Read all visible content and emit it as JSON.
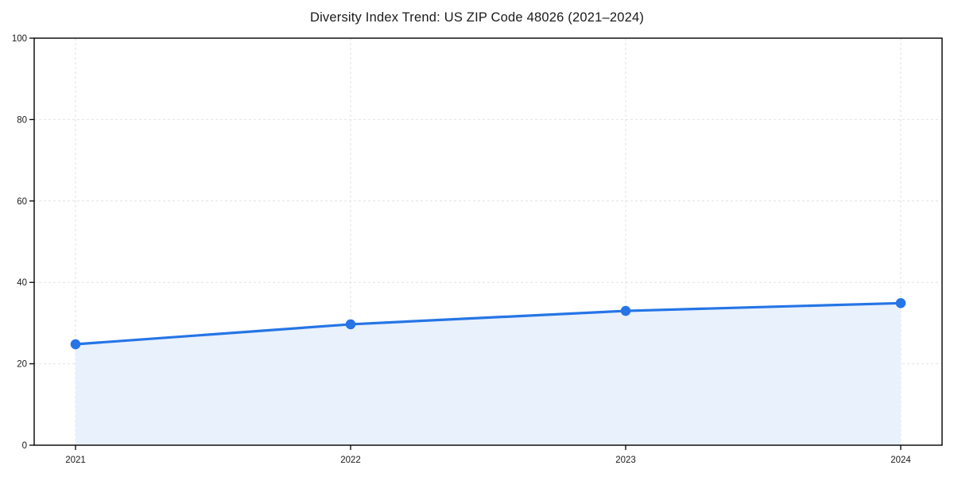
{
  "title": "Diversity Index Trend: US ZIP Code 48026 (2021–2024)",
  "chart_data": {
    "type": "line",
    "title": "Diversity Index Trend: US ZIP Code 48026 (2021–2024)",
    "x": [
      "2021",
      "2022",
      "2023",
      "2024"
    ],
    "series": [
      {
        "name": "Diversity Index",
        "values": [
          24.8,
          29.7,
          33.0,
          34.9
        ]
      }
    ],
    "xlabel": "",
    "ylabel": "",
    "ylim": [
      0,
      100
    ],
    "yticks": [
      0,
      20,
      40,
      60,
      80,
      100
    ],
    "grid": true,
    "grid_style": "dashed",
    "legend_position": "none",
    "colors": {
      "line": "#2575e6",
      "marker": "#2575e6",
      "area_fill": "#e9f1fc",
      "grid": "#e2e2e2",
      "spine": "#000000",
      "text": "#1a1a1a"
    },
    "marker_style": "circle",
    "area_fill": true,
    "frame": true
  }
}
